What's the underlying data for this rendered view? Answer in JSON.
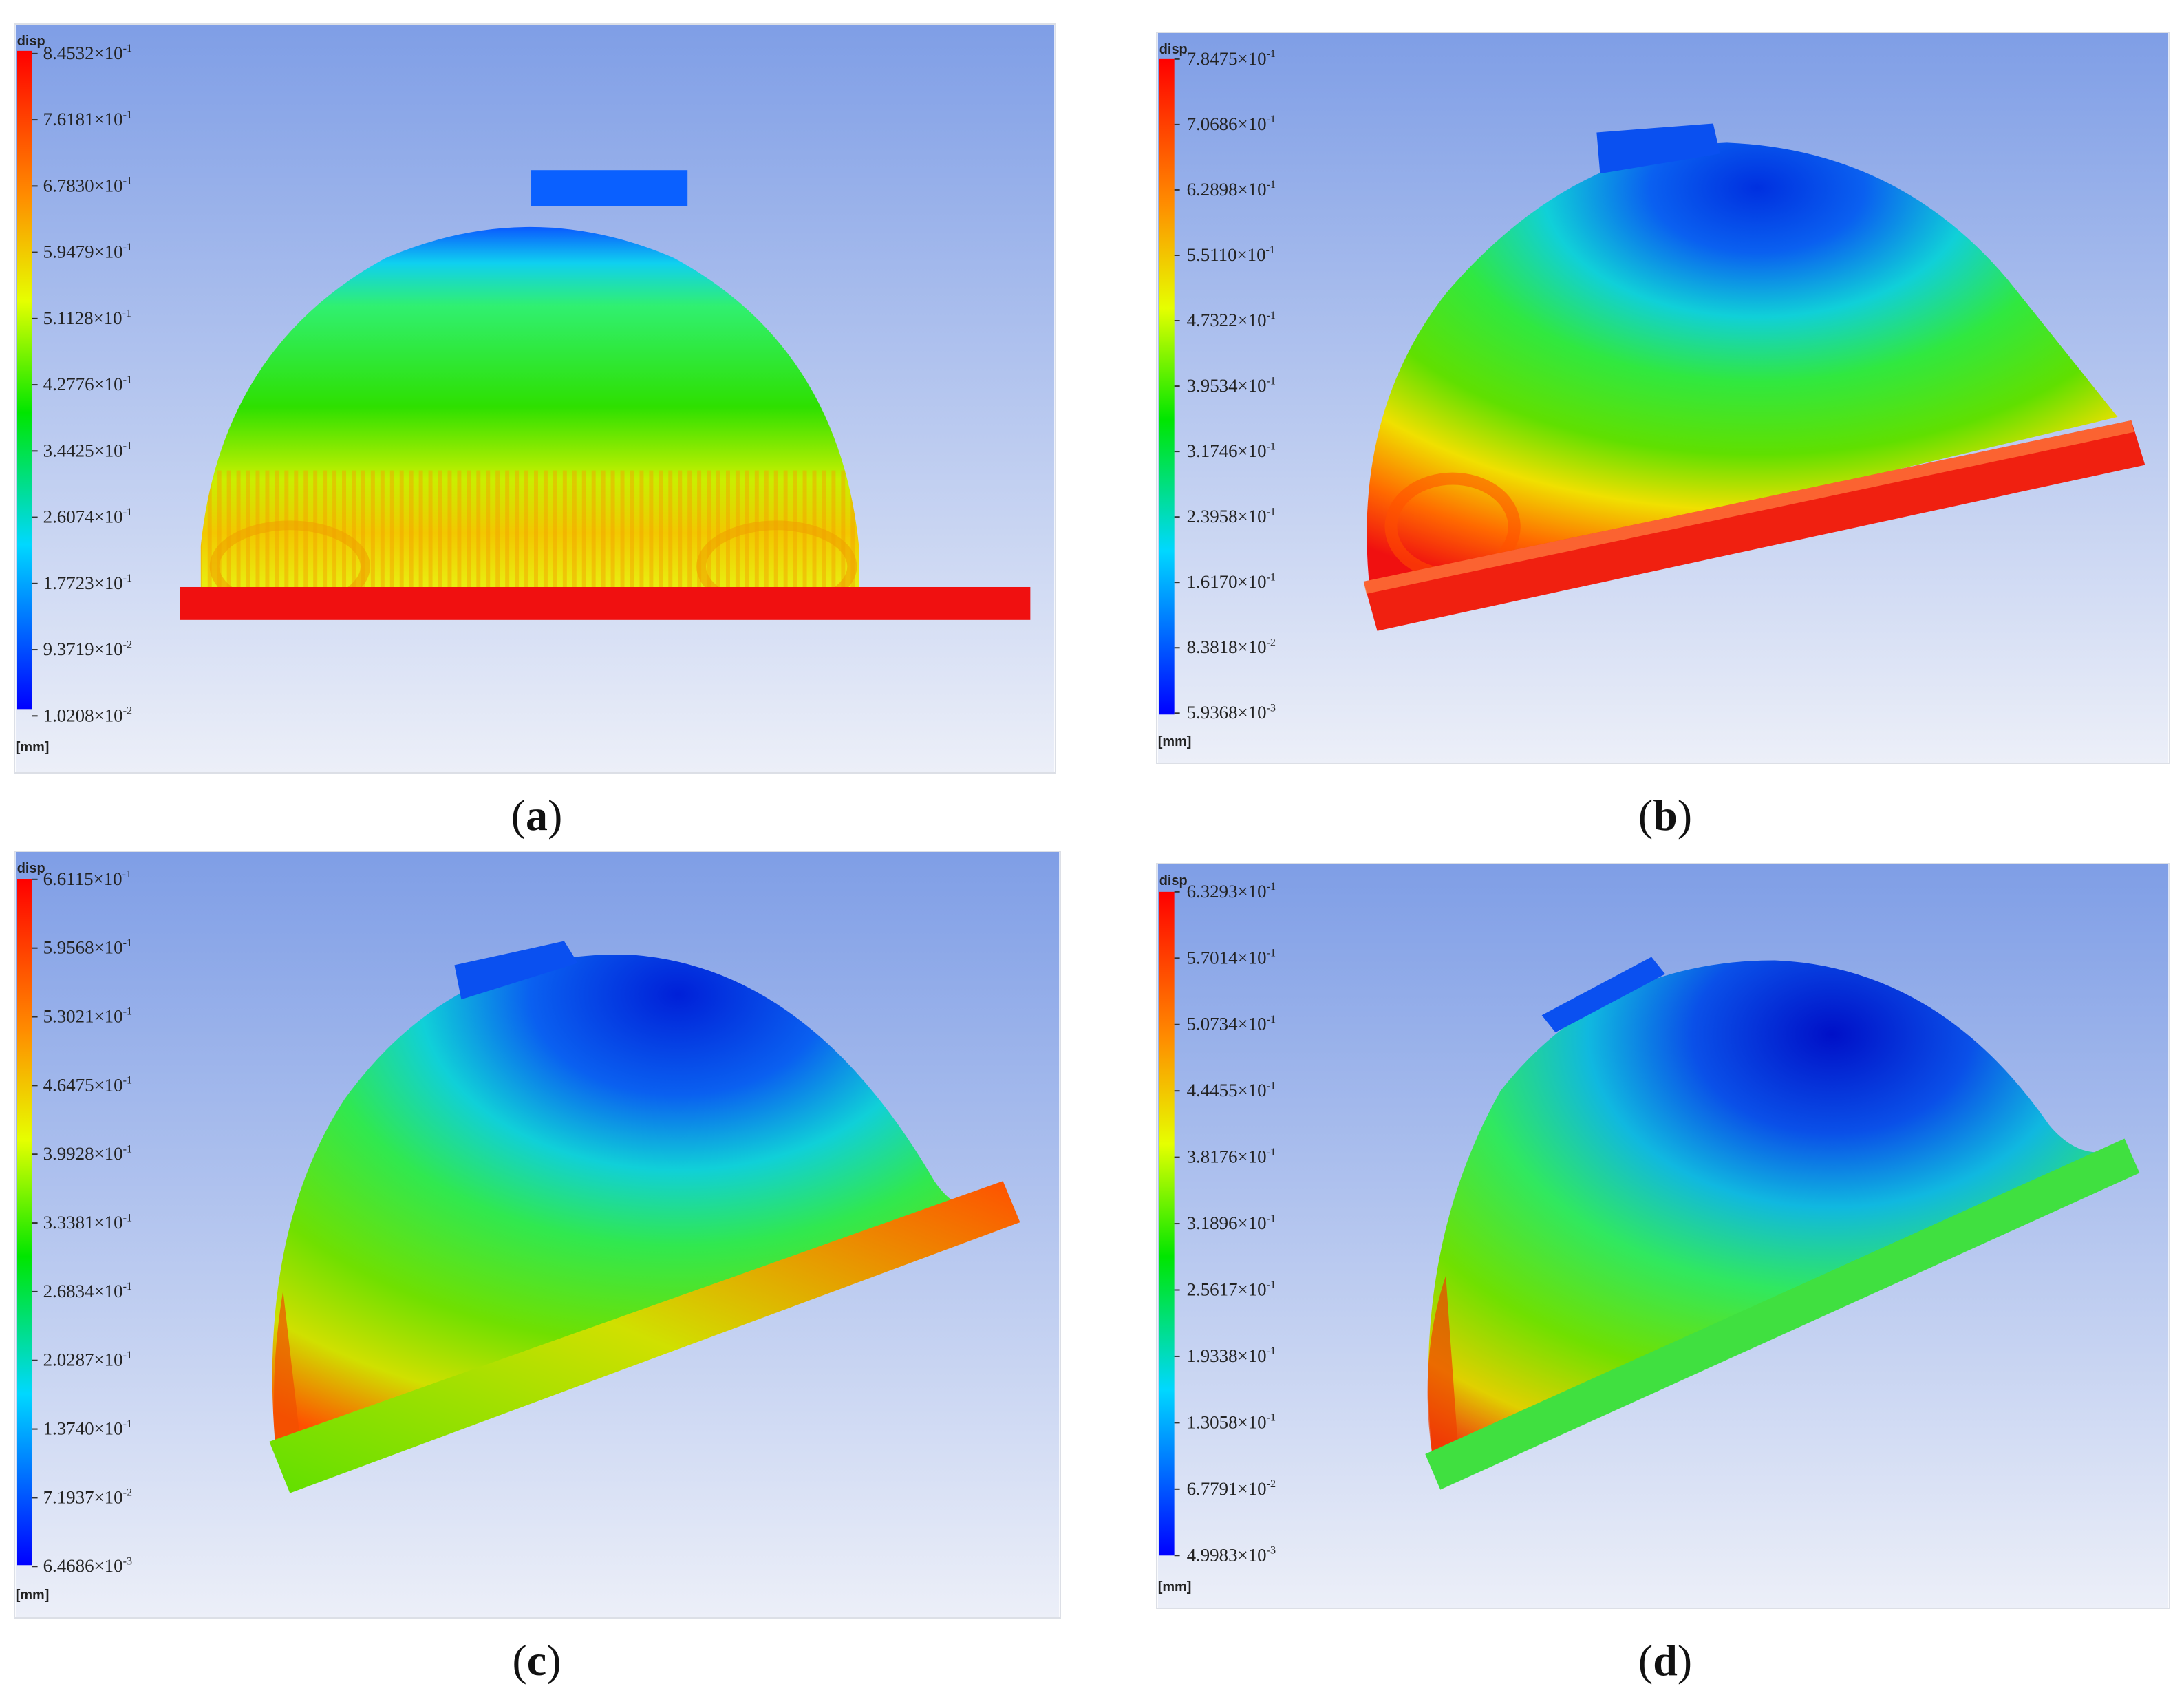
{
  "panels": [
    {
      "id": "a",
      "caption_letter": "a",
      "legend_title": "disp",
      "unit": "[mm]",
      "labels": [
        {
          "m": "8.4532",
          "e": "-1"
        },
        {
          "m": "7.6181",
          "e": "-1"
        },
        {
          "m": "6.7830",
          "e": "-1"
        },
        {
          "m": "5.9479",
          "e": "-1"
        },
        {
          "m": "5.1128",
          "e": "-1"
        },
        {
          "m": "4.2776",
          "e": "-1"
        },
        {
          "m": "3.4425",
          "e": "-1"
        },
        {
          "m": "2.6074",
          "e": "-1"
        },
        {
          "m": "1.7723",
          "e": "-1"
        },
        {
          "m": "9.3719",
          "e": "-2"
        },
        {
          "m": "1.0208",
          "e": "-2"
        }
      ]
    },
    {
      "id": "b",
      "caption_letter": "b",
      "legend_title": "disp",
      "unit": "[mm]",
      "labels": [
        {
          "m": "7.8475",
          "e": "-1"
        },
        {
          "m": "7.0686",
          "e": "-1"
        },
        {
          "m": "6.2898",
          "e": "-1"
        },
        {
          "m": "5.5110",
          "e": "-1"
        },
        {
          "m": "4.7322",
          "e": "-1"
        },
        {
          "m": "3.9534",
          "e": "-1"
        },
        {
          "m": "3.1746",
          "e": "-1"
        },
        {
          "m": "2.3958",
          "e": "-1"
        },
        {
          "m": "1.6170",
          "e": "-1"
        },
        {
          "m": "8.3818",
          "e": "-2"
        },
        {
          "m": "5.9368",
          "e": "-3"
        }
      ]
    },
    {
      "id": "c",
      "caption_letter": "c",
      "legend_title": "disp",
      "unit": "[mm]",
      "labels": [
        {
          "m": "6.6115",
          "e": "-1"
        },
        {
          "m": "5.9568",
          "e": "-1"
        },
        {
          "m": "5.3021",
          "e": "-1"
        },
        {
          "m": "4.6475",
          "e": "-1"
        },
        {
          "m": "3.9928",
          "e": "-1"
        },
        {
          "m": "3.3381",
          "e": "-1"
        },
        {
          "m": "2.6834",
          "e": "-1"
        },
        {
          "m": "2.0287",
          "e": "-1"
        },
        {
          "m": "1.3740",
          "e": "-1"
        },
        {
          "m": "7.1937",
          "e": "-2"
        },
        {
          "m": "6.4686",
          "e": "-3"
        }
      ]
    },
    {
      "id": "d",
      "caption_letter": "d",
      "legend_title": "disp",
      "unit": "[mm]",
      "labels": [
        {
          "m": "6.3293",
          "e": "-1"
        },
        {
          "m": "5.7014",
          "e": "-1"
        },
        {
          "m": "5.0734",
          "e": "-1"
        },
        {
          "m": "4.4455",
          "e": "-1"
        },
        {
          "m": "3.8176",
          "e": "-1"
        },
        {
          "m": "3.1896",
          "e": "-1"
        },
        {
          "m": "2.5617",
          "e": "-1"
        },
        {
          "m": "1.9338",
          "e": "-1"
        },
        {
          "m": "1.3058",
          "e": "-1"
        },
        {
          "m": "6.7791",
          "e": "-2"
        },
        {
          "m": "4.9983",
          "e": "-3"
        }
      ]
    }
  ],
  "colors": {
    "background_top": "#7f9ee6",
    "background_bottom": "#e6eaf7",
    "colorbar_top": "#ff0000",
    "colorbar_bottom": "#0000ff"
  }
}
